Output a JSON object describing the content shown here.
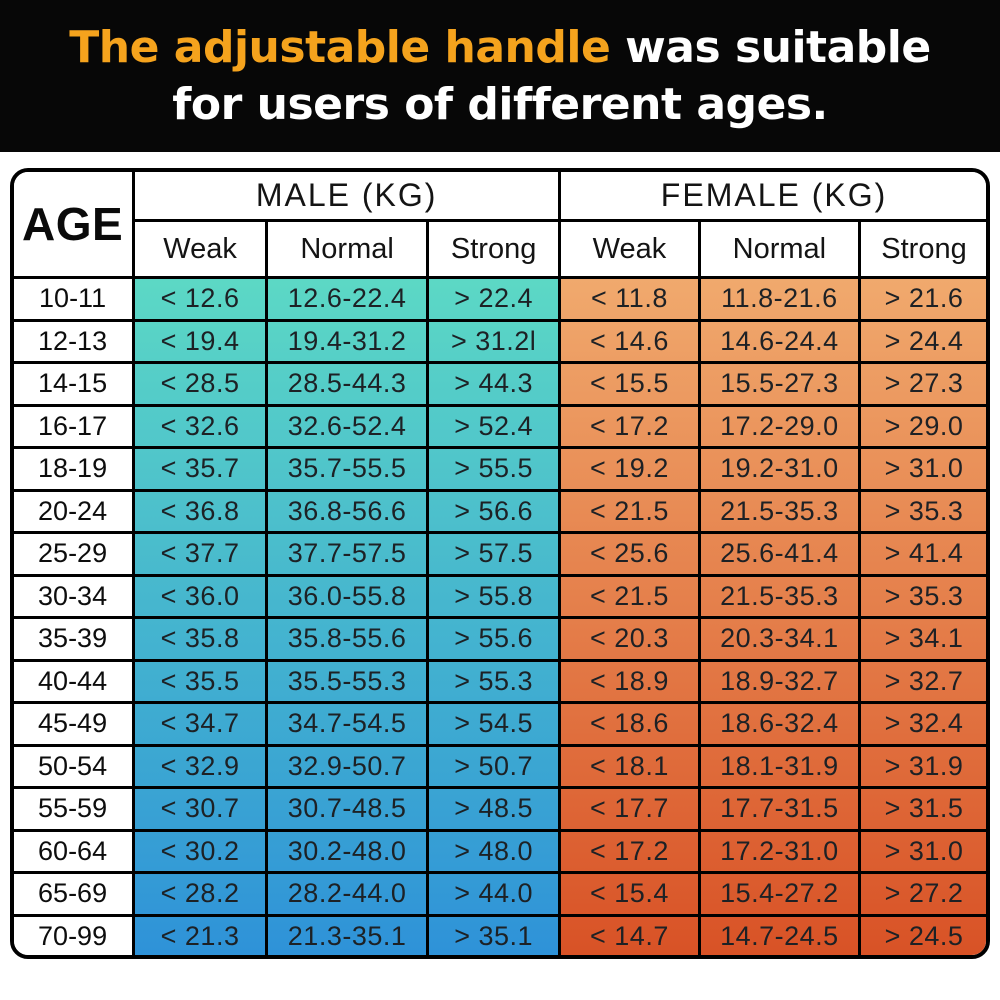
{
  "banner": {
    "title_highlight": "The adjustable handle",
    "title_rest": " was suitable",
    "title_line2": "for users of different ages.",
    "highlight_color": "#F5A31D",
    "text_color": "#FFFFFF",
    "background": "#070707"
  },
  "chart_data": {
    "type": "table",
    "title": "The adjustable handle was suitable for users of different ages.",
    "corner_header": "AGE",
    "group_headers": [
      "MALE (KG)",
      "FEMALE (KG)"
    ],
    "subheaders": [
      "Weak",
      "Normal",
      "Strong",
      "Weak",
      "Normal",
      "Strong"
    ],
    "male_gradient_top": "#5CD8C5",
    "male_gradient_bottom": "#2E92D8",
    "female_gradient_top": "#F0A96D",
    "female_gradient_bottom": "#D85226",
    "rows": [
      {
        "age": "10-11",
        "male": [
          "< 12.6",
          "12.6-22.4",
          "> 22.4"
        ],
        "female": [
          "< 11.8",
          "11.8-21.6",
          "> 21.6"
        ]
      },
      {
        "age": "12-13",
        "male": [
          "< 19.4",
          "19.4-31.2",
          "> 31.2l"
        ],
        "female": [
          "< 14.6",
          "14.6-24.4",
          "> 24.4"
        ]
      },
      {
        "age": "14-15",
        "male": [
          "< 28.5",
          "28.5-44.3",
          "> 44.3"
        ],
        "female": [
          "< 15.5",
          "15.5-27.3",
          "> 27.3"
        ]
      },
      {
        "age": "16-17",
        "male": [
          "< 32.6",
          "32.6-52.4",
          "> 52.4"
        ],
        "female": [
          "< 17.2",
          "17.2-29.0",
          "> 29.0"
        ]
      },
      {
        "age": "18-19",
        "male": [
          "< 35.7",
          "35.7-55.5",
          "> 55.5"
        ],
        "female": [
          "< 19.2",
          "19.2-31.0",
          "> 31.0"
        ]
      },
      {
        "age": "20-24",
        "male": [
          "< 36.8",
          "36.8-56.6",
          "> 56.6"
        ],
        "female": [
          "< 21.5",
          "21.5-35.3",
          "> 35.3"
        ]
      },
      {
        "age": "25-29",
        "male": [
          "< 37.7",
          "37.7-57.5",
          "> 57.5"
        ],
        "female": [
          "< 25.6",
          "25.6-41.4",
          "> 41.4"
        ]
      },
      {
        "age": "30-34",
        "male": [
          "< 36.0",
          "36.0-55.8",
          "> 55.8"
        ],
        "female": [
          "< 21.5",
          "21.5-35.3",
          "> 35.3"
        ]
      },
      {
        "age": "35-39",
        "male": [
          "< 35.8",
          "35.8-55.6",
          "> 55.6"
        ],
        "female": [
          "< 20.3",
          "20.3-34.1",
          "> 34.1"
        ]
      },
      {
        "age": "40-44",
        "male": [
          "< 35.5",
          "35.5-55.3",
          "> 55.3"
        ],
        "female": [
          "< 18.9",
          "18.9-32.7",
          "> 32.7"
        ]
      },
      {
        "age": "45-49",
        "male": [
          "< 34.7",
          "34.7-54.5",
          "> 54.5"
        ],
        "female": [
          "< 18.6",
          "18.6-32.4",
          "> 32.4"
        ]
      },
      {
        "age": "50-54",
        "male": [
          "< 32.9",
          "32.9-50.7",
          "> 50.7"
        ],
        "female": [
          "< 18.1",
          "18.1-31.9",
          "> 31.9"
        ]
      },
      {
        "age": "55-59",
        "male": [
          "< 30.7",
          "30.7-48.5",
          "> 48.5"
        ],
        "female": [
          "< 17.7",
          "17.7-31.5",
          "> 31.5"
        ]
      },
      {
        "age": "60-64",
        "male": [
          "< 30.2",
          "30.2-48.0",
          "> 48.0"
        ],
        "female": [
          "< 17.2",
          "17.2-31.0",
          "> 31.0"
        ]
      },
      {
        "age": "65-69",
        "male": [
          "< 28.2",
          "28.2-44.0",
          "> 44.0"
        ],
        "female": [
          "< 15.4",
          "15.4-27.2",
          "> 27.2"
        ]
      },
      {
        "age": "70-99",
        "male": [
          "< 21.3",
          "21.3-35.1",
          "> 35.1"
        ],
        "female": [
          "< 14.7",
          "14.7-24.5",
          "> 24.5"
        ]
      }
    ]
  }
}
